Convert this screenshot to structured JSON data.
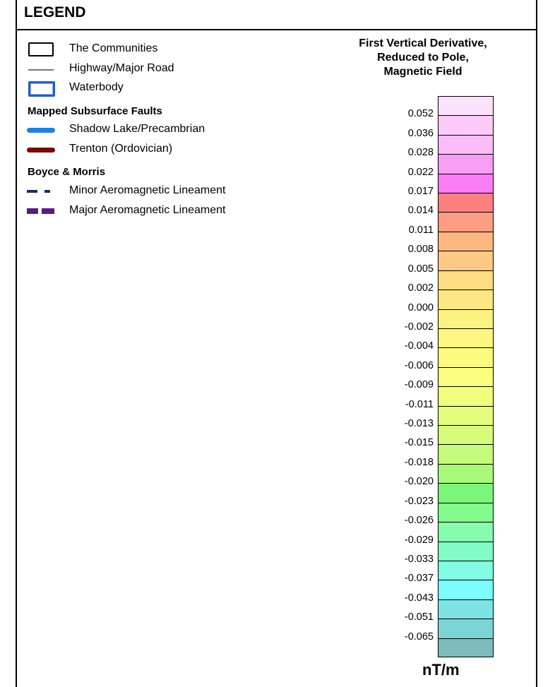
{
  "legend": {
    "title": "LEGEND",
    "items": [
      {
        "label": "The Communities",
        "icon": "community-boundary-icon"
      },
      {
        "label": "Highway/Major Road",
        "icon": "road-line-icon"
      },
      {
        "label": "Waterbody",
        "icon": "waterbody-icon",
        "color": "#1f5fd0"
      }
    ],
    "faults_header": "Mapped Subsurface Faults",
    "faults": [
      {
        "label": "Shadow Lake/Precambrian",
        "icon": "blue-fault-line-icon",
        "color": "#1e7fe6"
      },
      {
        "label": "Trenton (Ordovician)",
        "icon": "red-fault-line-icon",
        "color": "#7a0a0a"
      }
    ],
    "lineament_header": "Boyce & Morris",
    "lineaments": [
      {
        "label": "Minor Aeromagnetic Lineament",
        "icon": "minor-dashed-line-icon",
        "color": "#1a2d6b"
      },
      {
        "label": "Major Aeromagnetic Lineament",
        "icon": "major-dashed-line-icon",
        "color": "#5a1a86"
      }
    ]
  },
  "colorbar": {
    "title_lines": [
      "First Vertical Derivative,",
      "Reduced to Pole,",
      "Magnetic Field"
    ],
    "unit": "nT/m",
    "ticks": [
      "0.052",
      "0.036",
      "0.028",
      "0.022",
      "0.017",
      "0.014",
      "0.011",
      "0.008",
      "0.005",
      "0.002",
      "0.000",
      "-0.002",
      "-0.004",
      "-0.006",
      "-0.009",
      "-0.011",
      "-0.013",
      "-0.015",
      "-0.018",
      "-0.020",
      "-0.023",
      "-0.026",
      "-0.029",
      "-0.033",
      "-0.037",
      "-0.043",
      "-0.051",
      "-0.065"
    ],
    "colors": [
      "#fbe2fb",
      "#fccaf9",
      "#fbbcf8",
      "#f59ef3",
      "#fb7df6",
      "#fd8080",
      "#fd9e82",
      "#fdb77f",
      "#fec984",
      "#fedd82",
      "#fde784",
      "#fdf17f",
      "#fef680",
      "#fcfb7f",
      "#fbfd7f",
      "#f1fd7d",
      "#e5fd7d",
      "#d8fb7a",
      "#c4fb7a",
      "#a9f97a",
      "#7cf57a",
      "#82fb8c",
      "#86fcae",
      "#84fcc8",
      "#80fde3",
      "#7cfcfc",
      "#7de3e3",
      "#7bd5d6",
      "#7ebcbc"
    ]
  }
}
